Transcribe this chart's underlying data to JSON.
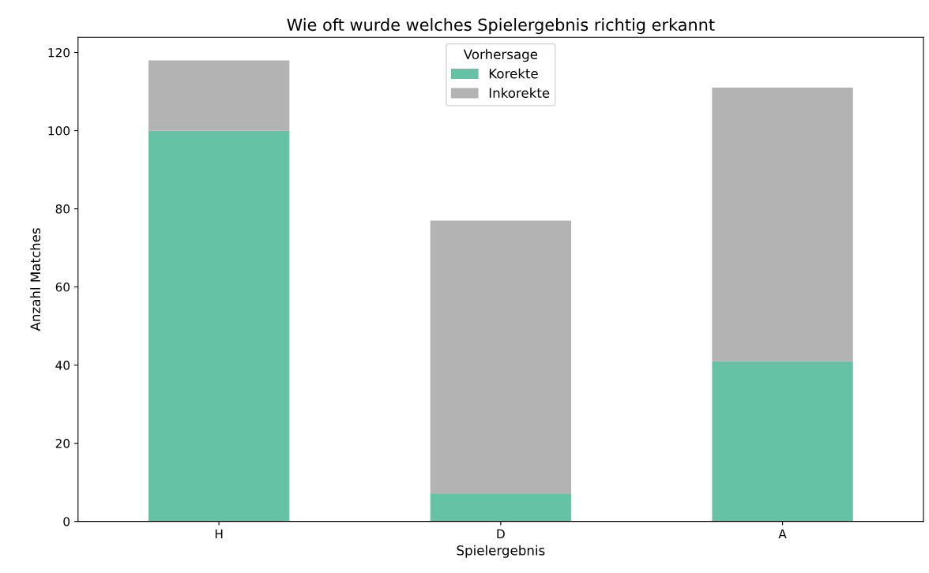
{
  "chart_data": {
    "type": "bar",
    "title": "Wie oft wurde welches Spielergebnis richtig erkannt",
    "xlabel": "Spielergebnis",
    "ylabel": "Anzahl Matches",
    "legend_title": "Vorhersage",
    "categories": [
      "H",
      "D",
      "A"
    ],
    "stacked": true,
    "series": [
      {
        "name": "Korekte",
        "color": "#66c2a5",
        "values": [
          100,
          7,
          41
        ]
      },
      {
        "name": "Inkorekte",
        "color": "#b3b3b3",
        "values": [
          18,
          70,
          70
        ]
      }
    ],
    "ylim": [
      0,
      123.9
    ],
    "yticks": [
      0,
      20,
      40,
      60,
      80,
      100,
      120
    ],
    "grid": false,
    "legend": "top"
  }
}
